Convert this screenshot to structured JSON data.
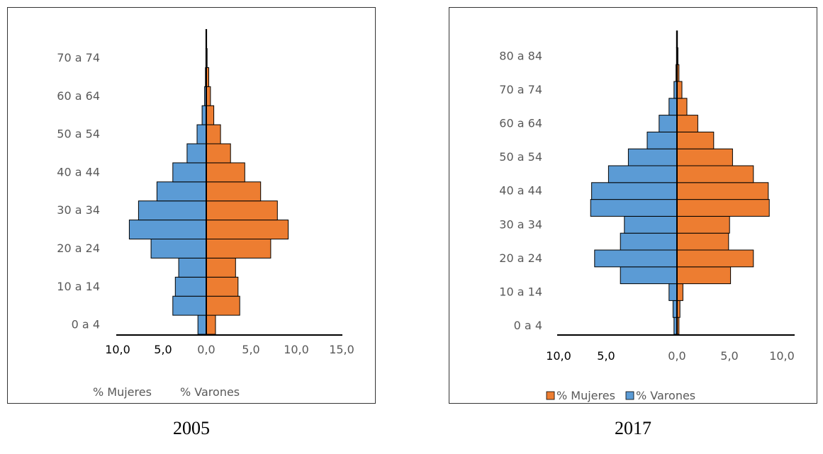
{
  "colors": {
    "mujeres": "#ED7D31",
    "varones": "#5B9BD5",
    "axis": "#000000",
    "text_grey": "#595959"
  },
  "chart_data": [
    {
      "type": "bar",
      "orientation": "horizontal",
      "subtype": "population-pyramid",
      "caption": "2005",
      "categories": [
        "0 a 4",
        "5 a 9",
        "10 a 14",
        "15 a 19",
        "20 a 24",
        "25 a 29",
        "30 a 34",
        "35 a 39",
        "40 a 44",
        "45 a 49",
        "50 a 54",
        "55 a 59",
        "60 a 64",
        "65 a 69",
        "70 a 74",
        "75 a 79"
      ],
      "y_tick_labels": [
        "0 a 4",
        "10 a 14",
        "20 a 24",
        "30 a 34",
        "40 a 44",
        "50 a 54",
        "60 a 64",
        "70 a 74"
      ],
      "series": [
        {
          "name": "% Mujeres",
          "side": "left",
          "color": "#5B9BD5",
          "values": [
            1.0,
            4.0,
            3.7,
            3.3,
            6.6,
            9.2,
            8.1,
            5.9,
            4.0,
            2.3,
            1.1,
            0.5,
            0.2,
            0.1,
            0.05,
            0.05
          ]
        },
        {
          "name": "% Varones",
          "side": "right",
          "color": "#ED7D31",
          "values": [
            1.1,
            4.0,
            3.8,
            3.5,
            7.7,
            9.8,
            8.5,
            6.5,
            4.6,
            2.9,
            1.7,
            0.9,
            0.5,
            0.3,
            0.1,
            0.05
          ]
        }
      ],
      "x_tick_labels": [
        "10,0",
        "5,0",
        "0,0",
        "5,0",
        "10,0",
        "15,0"
      ],
      "xlim": [
        -10,
        15
      ],
      "legend": {
        "placement": "bottom",
        "items": [
          "% Mujeres",
          "% Varones"
        ],
        "swatches": false
      }
    },
    {
      "type": "bar",
      "orientation": "horizontal",
      "subtype": "population-pyramid",
      "caption": "2017",
      "categories": [
        "0 a 4",
        "5 a 9",
        "10 a 14",
        "15 a 19",
        "20 a 24",
        "25 a 29",
        "30 a 34",
        "35 a 39",
        "40 a 44",
        "45 a 49",
        "50 a 54",
        "55 a 59",
        "60 a 64",
        "65 a 69",
        "70 a 74",
        "75 a 79",
        "80 a 84",
        "85 a 89"
      ],
      "y_tick_labels": [
        "0 a 4",
        "10 a 14",
        "20 a 24",
        "30 a 34",
        "40 a 44",
        "50 a 54",
        "60 a 64",
        "70 a 74",
        "80 a 84"
      ],
      "series": [
        {
          "name": "% Mujeres",
          "side": "right",
          "color": "#ED7D31",
          "values": [
            0.2,
            0.3,
            0.6,
            5.4,
            7.7,
            5.2,
            5.3,
            9.3,
            9.2,
            7.7,
            5.6,
            3.7,
            2.1,
            1.0,
            0.5,
            0.2,
            0.1,
            0.05
          ]
        },
        {
          "name": "% Varones",
          "side": "left",
          "color": "#5B9BD5",
          "values": [
            0.3,
            0.4,
            0.8,
            5.7,
            8.3,
            5.7,
            5.3,
            8.7,
            8.6,
            6.9,
            4.9,
            3.0,
            1.8,
            0.8,
            0.3,
            0.1,
            0.05,
            0.05
          ]
        }
      ],
      "x_tick_labels": [
        "10,0",
        "5,0",
        "0,0",
        "5,0",
        "10,0"
      ],
      "xlim": [
        -10,
        10
      ],
      "legend": {
        "placement": "bottom",
        "items": [
          "% Mujeres",
          "% Varones"
        ],
        "swatches": true
      }
    }
  ]
}
